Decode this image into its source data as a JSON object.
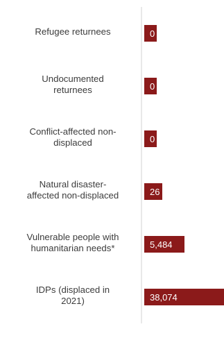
{
  "chart_data": {
    "type": "bar",
    "orientation": "horizontal",
    "categories": [
      "Refugee returnees",
      "Undocumented returnees",
      "Conflict-affected non-displaced",
      "Natural disaster-affected non-displaced",
      "Vulnerable people with humanitarian needs*",
      "IDPs (displaced in 2021)"
    ],
    "display_labels": [
      [
        "Refugee returnees"
      ],
      [
        "Undocumented",
        "returnees"
      ],
      [
        "Conflict-affected non-",
        "displaced"
      ],
      [
        "Natural disaster-",
        "affected non-displaced"
      ],
      [
        "Vulnerable people with",
        "humanitarian needs*"
      ],
      [
        "IDPs (displaced in",
        "2021)"
      ]
    ],
    "values": [
      0,
      0,
      0,
      26,
      5484,
      38074
    ],
    "value_labels": [
      "0",
      "0",
      "0",
      "26",
      "5,484",
      "38,074"
    ],
    "xlim": [
      0,
      38074
    ],
    "title": "",
    "xlabel": "",
    "ylabel": "",
    "grid": false,
    "legend": "none",
    "colors": {
      "bar": "#8b1a1a",
      "bar_highlight": "#7a1414",
      "axis": "#d0d0d0",
      "label_text": "#3c3c3c",
      "value_text": "#ffffff"
    }
  }
}
